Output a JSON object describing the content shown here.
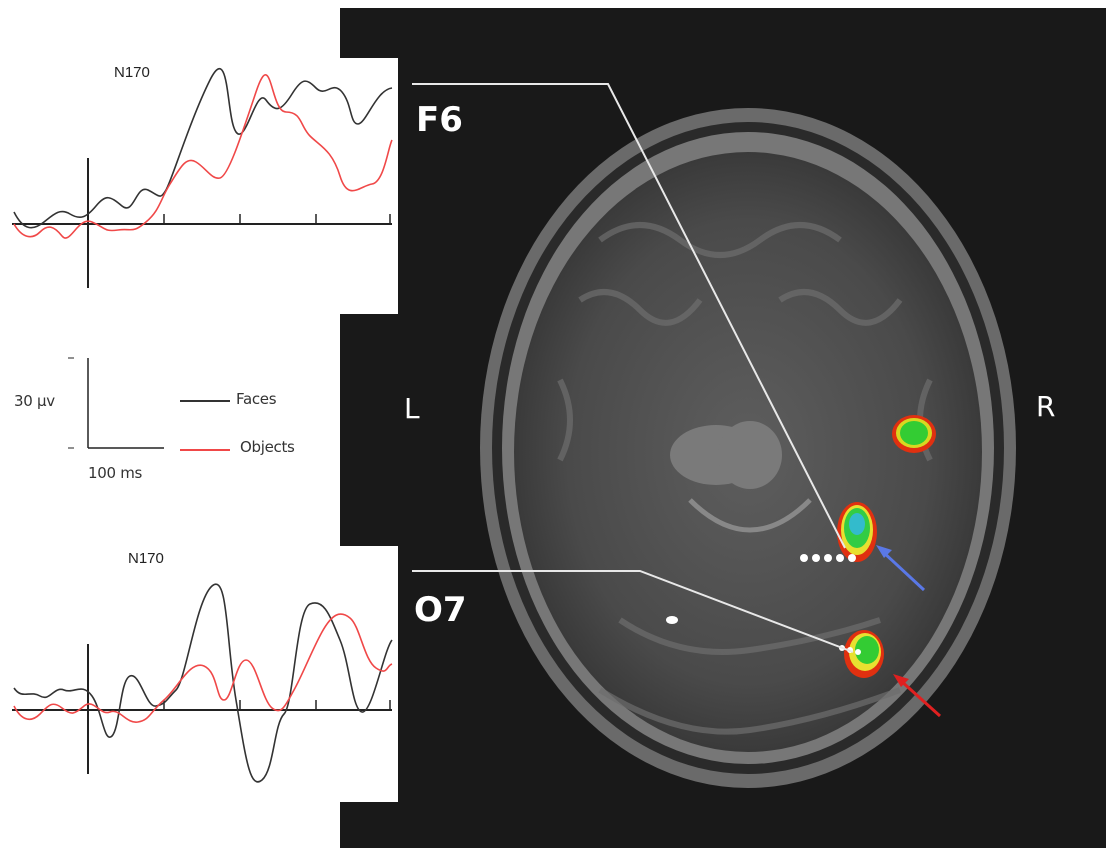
{
  "top_erp": {
    "title": "N170",
    "series": [
      {
        "name": "Faces",
        "color": "#333333"
      },
      {
        "name": "Objects",
        "color": "#f04848"
      }
    ]
  },
  "bottom_erp": {
    "title": "N170"
  },
  "scale_bar": {
    "amplitude": "30 µv",
    "time": "100 ms"
  },
  "legend": {
    "faces_label": "Faces",
    "objects_label": "Objects",
    "faces_color": "#333333",
    "objects_color": "#f04848"
  },
  "mri": {
    "electrode_top": "F6",
    "electrode_bottom": "O7",
    "left_label": "L",
    "right_label": "R",
    "arrow_blue_color": "#5a78e6",
    "arrow_red_color": "#e02020"
  }
}
